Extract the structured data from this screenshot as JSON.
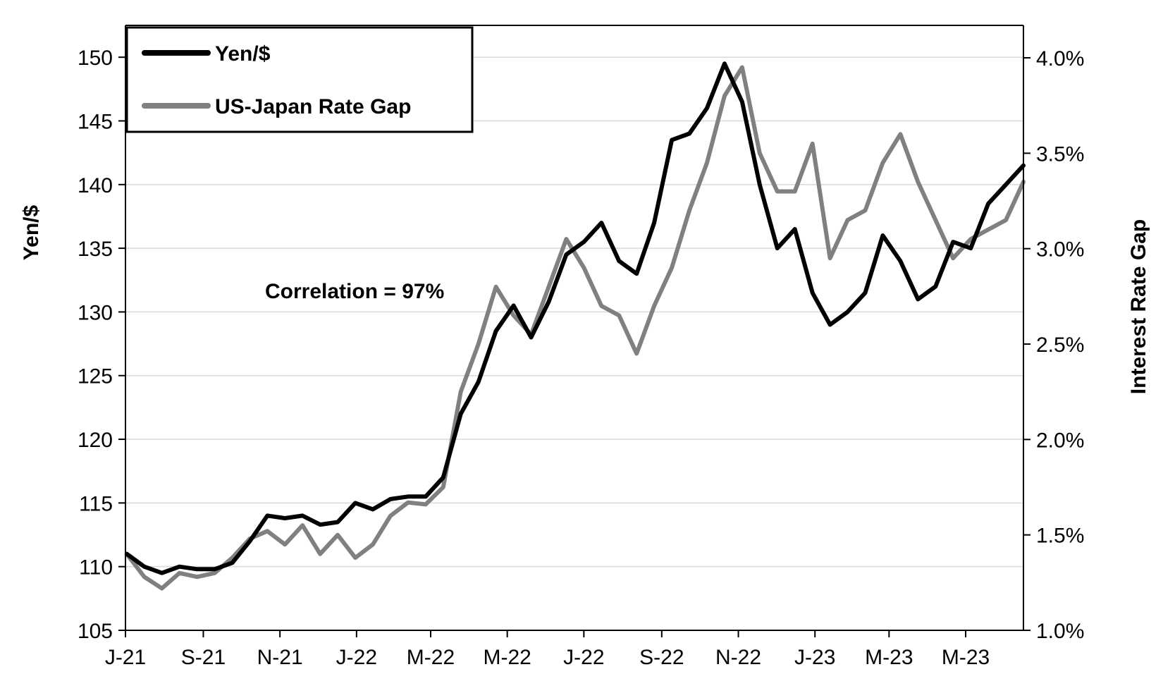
{
  "chart_data": {
    "type": "line",
    "title": "",
    "annotation": "Correlation = 97%",
    "xlabel": "",
    "ylabel_left": "Yen/$",
    "ylabel_right": "Interest Rate Gap",
    "ylim_left": [
      105,
      152.5
    ],
    "ylim_right": [
      1.0,
      4.17
    ],
    "yticks_left": [
      "105",
      "110",
      "115",
      "120",
      "125",
      "130",
      "135",
      "140",
      "145",
      "150"
    ],
    "yticks_right": [
      "1.0%",
      "1.5%",
      "2.0%",
      "2.5%",
      "3.0%",
      "3.5%",
      "4.0%"
    ],
    "xticks": [
      "J-21",
      "S-21",
      "N-21",
      "J-22",
      "M-22",
      "M-22",
      "J-22",
      "S-22",
      "N-22",
      "J-23",
      "M-23",
      "M-23"
    ],
    "xlim": [
      "2021-07-01",
      "2023-06-16"
    ],
    "grid": true,
    "legend_position": "top-left",
    "colors": {
      "yen": "#000000",
      "gap": "#808080",
      "grid": "#d9d9d9"
    },
    "x": [
      "2021-07-02",
      "2021-07-16",
      "2021-07-30",
      "2021-08-13",
      "2021-08-27",
      "2021-09-10",
      "2021-09-24",
      "2021-10-08",
      "2021-10-22",
      "2021-11-05",
      "2021-11-19",
      "2021-12-03",
      "2021-12-17",
      "2021-12-31",
      "2022-01-14",
      "2022-01-28",
      "2022-02-11",
      "2022-02-25",
      "2022-03-11",
      "2022-03-25",
      "2022-04-08",
      "2022-04-22",
      "2022-05-06",
      "2022-05-20",
      "2022-06-03",
      "2022-06-17",
      "2022-07-01",
      "2022-07-15",
      "2022-07-29",
      "2022-08-12",
      "2022-08-26",
      "2022-09-09",
      "2022-09-23",
      "2022-10-07",
      "2022-10-21",
      "2022-11-04",
      "2022-11-18",
      "2022-12-02",
      "2022-12-16",
      "2022-12-30",
      "2023-01-13",
      "2023-01-27",
      "2023-02-10",
      "2023-02-24",
      "2023-03-10",
      "2023-03-24",
      "2023-04-07",
      "2023-04-21",
      "2023-05-05",
      "2023-05-19",
      "2023-06-02",
      "2023-06-16"
    ],
    "series": [
      {
        "name": "Yen/$",
        "values": [
          111.0,
          110.0,
          109.5,
          110.0,
          109.8,
          109.8,
          110.3,
          112.0,
          114.0,
          113.8,
          114.0,
          113.3,
          113.5,
          115.0,
          114.5,
          115.3,
          115.5,
          115.5,
          117.0,
          122.0,
          124.5,
          128.5,
          130.5,
          128.0,
          130.8,
          134.5,
          135.5,
          137.0,
          134.0,
          133.0,
          137.0,
          143.5,
          144.0,
          146.0,
          149.5,
          146.5,
          140.0,
          135.0,
          136.5,
          131.5,
          129.0,
          130.0,
          131.5,
          136.0,
          134.0,
          131.0,
          132.0,
          135.5,
          135.0,
          138.5,
          140.0,
          141.5
        ]
      },
      {
        "name": "US-Japan Rate Gap",
        "values": [
          1.4,
          1.28,
          1.22,
          1.3,
          1.28,
          1.3,
          1.38,
          1.48,
          1.52,
          1.45,
          1.55,
          1.4,
          1.5,
          1.38,
          1.45,
          1.6,
          1.67,
          1.66,
          1.75,
          2.25,
          2.5,
          2.8,
          2.65,
          2.55,
          2.8,
          3.05,
          2.9,
          2.7,
          2.65,
          2.45,
          2.7,
          2.9,
          3.2,
          3.45,
          3.8,
          3.95,
          3.5,
          3.3,
          3.3,
          3.55,
          2.95,
          3.15,
          3.2,
          3.45,
          3.6,
          3.35,
          3.15,
          2.95,
          3.05,
          3.1,
          3.15,
          3.35
        ]
      }
    ]
  }
}
